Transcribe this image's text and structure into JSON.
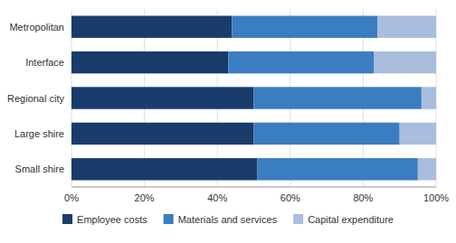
{
  "chart_data": {
    "type": "bar",
    "orientation": "horizontal",
    "stacked": true,
    "categories": [
      "Metropolitan",
      "Interface",
      "Regional city",
      "Large shire",
      "Small shire"
    ],
    "series": [
      {
        "name": "Employee costs",
        "color": "#1A3C6B",
        "values": [
          44,
          43,
          50,
          50,
          51
        ]
      },
      {
        "name": "Materials and services",
        "color": "#3A7DC0",
        "values": [
          40,
          40,
          46,
          40,
          44
        ]
      },
      {
        "name": "Capital expenditure",
        "color": "#A8BEDC",
        "values": [
          16,
          17,
          4,
          10,
          5
        ]
      }
    ],
    "xlim": [
      0,
      100
    ],
    "xticks": [
      {
        "value": 0,
        "label": "0%"
      },
      {
        "value": 20,
        "label": "20%"
      },
      {
        "value": 40,
        "label": "40%"
      },
      {
        "value": 60,
        "label": "60%"
      },
      {
        "value": 80,
        "label": "80%"
      },
      {
        "value": 100,
        "label": "100%"
      }
    ],
    "grid": true,
    "legend": "bottom"
  }
}
